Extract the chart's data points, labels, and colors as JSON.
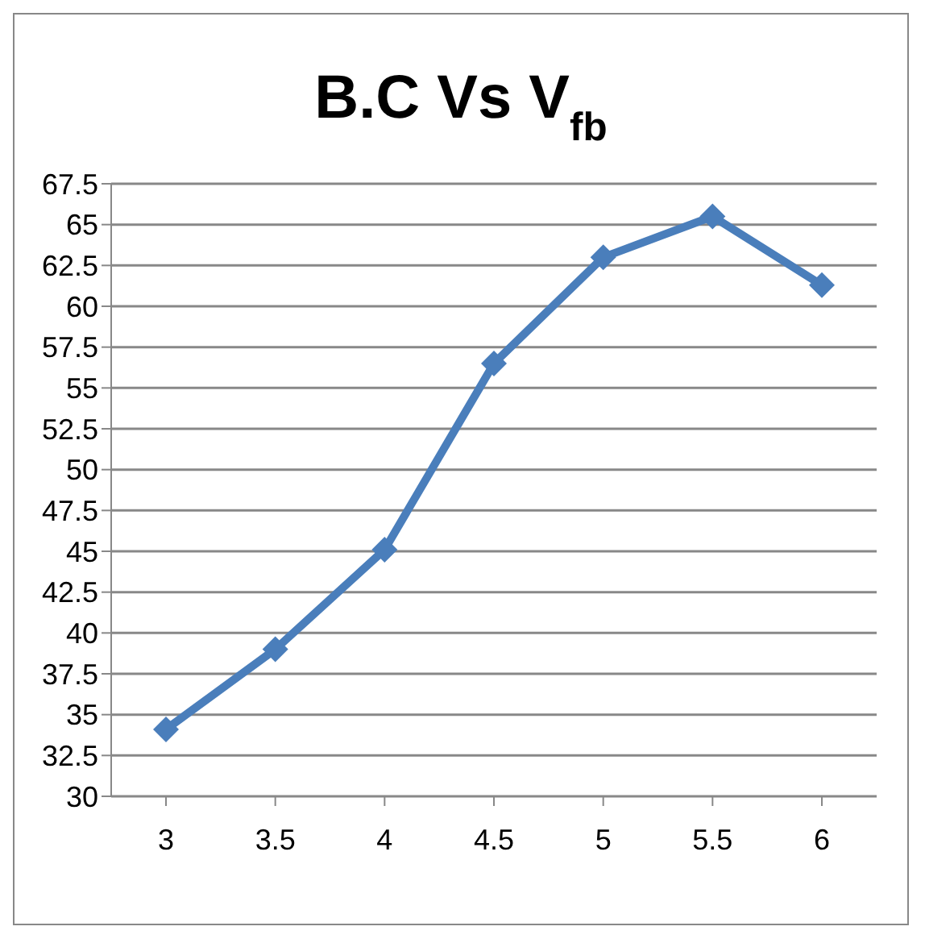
{
  "chart_data": {
    "type": "line",
    "title": "B.C Vs V$_{fb}$",
    "categories": [
      "3",
      "3.5",
      "4",
      "4.5",
      "5",
      "5.5",
      "6"
    ],
    "series": [
      {
        "color": "#4a7ebb",
        "values": [
          34.1,
          39.0,
          45.1,
          56.5,
          63.0,
          65.5,
          61.3
        ]
      }
    ],
    "ylim": [
      30,
      67.5
    ],
    "yticks": [
      30,
      32.5,
      35,
      37.5,
      40,
      42.5,
      45,
      47.5,
      50,
      52.5,
      55,
      57.5,
      60,
      62.5,
      65,
      67.5
    ],
    "grid": "y",
    "legend": false,
    "marker": "diamond",
    "line_style": "solid"
  }
}
